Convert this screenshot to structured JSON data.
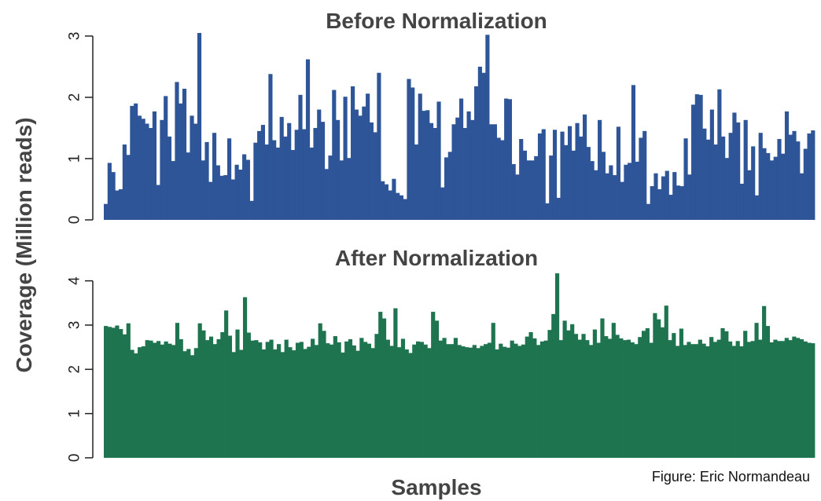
{
  "chart_data": [
    {
      "type": "bar",
      "title": "Before Normalization",
      "ylim": [
        0,
        3.05
      ],
      "yticks": [
        0,
        1,
        2,
        3
      ],
      "color": "#2e5597",
      "values": [
        0.26,
        0.93,
        0.78,
        0.48,
        0.5,
        1.23,
        1.06,
        1.86,
        1.9,
        1.7,
        1.65,
        1.57,
        1.5,
        1.77,
        0.57,
        1.63,
        2.02,
        1.36,
        0.96,
        2.25,
        1.9,
        2.14,
        1.1,
        1.7,
        1.57,
        3.05,
        0.97,
        1.27,
        0.62,
        1.42,
        0.89,
        0.72,
        0.73,
        1.33,
        0.66,
        0.9,
        0.82,
        1.07,
        0.98,
        0.31,
        1.26,
        1.45,
        1.55,
        1.23,
        2.38,
        1.3,
        1.18,
        1.68,
        1.36,
        1.58,
        1.14,
        1.47,
        2.04,
        1.48,
        2.62,
        1.18,
        1.5,
        1.8,
        1.6,
        0.83,
        1.05,
        2.12,
        1.63,
        0.97,
        2.01,
        1.01,
        2.18,
        1.8,
        1.7,
        1.85,
        2.06,
        1.59,
        1.43,
        2.4,
        0.63,
        0.58,
        0.48,
        0.67,
        0.44,
        0.4,
        0.34,
        2.3,
        2.16,
        1.23,
        2.06,
        1.78,
        1.79,
        1.58,
        1.5,
        1.93,
        0.53,
        1.02,
        1.11,
        1.56,
        1.67,
        1.98,
        1.5,
        1.77,
        1.63,
        2.18,
        2.5,
        2.4,
        3.02,
        1.56,
        1.56,
        1.34,
        1.3,
        1.98,
        1.97,
        0.91,
        0.74,
        1.32,
        1.13,
        0.97,
        0.97,
        1.04,
        1.41,
        1.48,
        0.27,
        1.05,
        1.47,
        0.36,
        1.44,
        1.22,
        1.53,
        1.13,
        1.58,
        1.36,
        1.72,
        1.19,
        0.96,
        0.81,
        1.63,
        1.11,
        0.76,
        0.89,
        0.73,
        1.52,
        0.62,
        0.9,
        0.93,
        2.2,
        0.95,
        1.34,
        1.45,
        0.26,
        0.55,
        0.76,
        0.5,
        0.71,
        0.8,
        0.41,
        0.78,
        0.56,
        0.55,
        1.33,
        0.74,
        1.88,
        2.05,
        2.04,
        1.49,
        1.31,
        1.8,
        1.23,
        2.13,
        1.36,
        1.01,
        1.42,
        1.75,
        1.59,
        0.59,
        1.63,
        0.81,
        1.2,
        0.4,
        1.42,
        1.17,
        1.09,
        0.97,
        1.03,
        1.32,
        1.08,
        1.77,
        1.39,
        1.45,
        1.28,
        0.76,
        1.16,
        1.41,
        1.46
      ]
    },
    {
      "type": "bar",
      "title": "After Normalization",
      "ylim": [
        0,
        4.1
      ],
      "yticks": [
        0,
        1,
        2,
        3,
        4
      ],
      "color": "#1f7450",
      "values": [
        2.98,
        2.96,
        2.94,
        2.99,
        2.91,
        2.79,
        3.04,
        2.44,
        2.36,
        2.5,
        2.52,
        2.66,
        2.65,
        2.6,
        2.64,
        2.56,
        2.63,
        2.58,
        2.55,
        3.05,
        2.68,
        2.41,
        2.46,
        2.32,
        2.48,
        3.04,
        2.88,
        2.66,
        2.74,
        2.57,
        2.68,
        2.84,
        3.33,
        2.76,
        2.39,
        2.9,
        2.44,
        3.63,
        2.83,
        2.65,
        2.66,
        2.61,
        2.45,
        2.62,
        2.67,
        2.45,
        2.57,
        2.39,
        2.67,
        2.5,
        2.43,
        2.6,
        2.62,
        2.46,
        2.51,
        2.69,
        2.55,
        3.04,
        2.87,
        2.59,
        2.56,
        2.75,
        2.61,
        2.38,
        2.63,
        2.68,
        2.54,
        2.42,
        2.71,
        2.62,
        2.58,
        2.48,
        2.8,
        3.3,
        3.15,
        2.67,
        2.53,
        3.38,
        2.5,
        2.69,
        2.45,
        2.37,
        2.56,
        2.63,
        2.62,
        2.56,
        2.48,
        3.3,
        3.1,
        2.65,
        2.71,
        2.57,
        2.57,
        2.71,
        2.55,
        2.52,
        2.5,
        2.49,
        2.55,
        2.48,
        2.53,
        2.57,
        2.6,
        3.05,
        2.45,
        2.58,
        2.51,
        2.49,
        2.65,
        2.58,
        2.53,
        2.56,
        2.74,
        2.84,
        2.7,
        2.55,
        2.63,
        2.65,
        2.89,
        3.25,
        4.17,
        2.66,
        3.1,
        2.88,
        3.02,
        2.8,
        2.67,
        2.8,
        2.66,
        2.55,
        2.9,
        2.6,
        3.15,
        2.75,
        2.69,
        3.05,
        2.78,
        2.7,
        2.66,
        2.67,
        2.61,
        2.57,
        2.73,
        2.87,
        2.93,
        2.6,
        3.27,
        3.13,
        2.95,
        3.44,
        2.66,
        2.82,
        2.53,
        2.92,
        2.55,
        2.62,
        2.57,
        2.57,
        2.67,
        2.58,
        2.52,
        2.73,
        2.62,
        2.67,
        2.93,
        2.86,
        2.63,
        2.53,
        2.64,
        2.52,
        2.87,
        2.62,
        2.64,
        3.05,
        2.67,
        3.43,
        2.98,
        2.61,
        2.67,
        2.64,
        2.64,
        2.71,
        2.66,
        2.74,
        2.71,
        2.68,
        2.63,
        2.6,
        2.59
      ]
    }
  ],
  "ylabel": "Coverage (Million reads)",
  "xlabel": "Samples",
  "credit": "Figure: Eric Normandeau"
}
